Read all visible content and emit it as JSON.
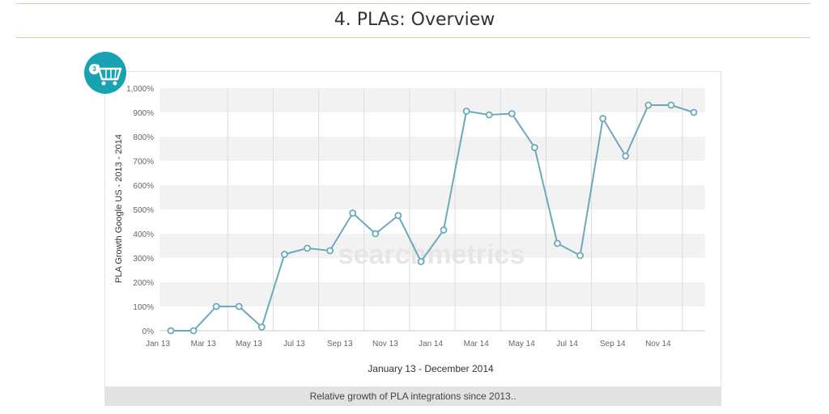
{
  "page": {
    "title": "4. PLAs: Overview"
  },
  "caption": "Relative growth of PLA integrations since 2013..",
  "icon": {
    "name": "shopping-cart-icon",
    "badge": "3",
    "color": "#19a3b2"
  },
  "watermark": "searchmetrics",
  "chart_data": {
    "type": "line",
    "xlabel": "January 13 - December 2014",
    "ylabel": "PLA Growth Google US - 2013 - 2014",
    "ylim": [
      0,
      1000
    ],
    "y_ticks": [
      "0%",
      "100%",
      "200%",
      "300%",
      "400%",
      "500%",
      "600%",
      "700%",
      "800%",
      "900%",
      "1,000%"
    ],
    "x_ticks": [
      "Jan 13",
      "Mar 13",
      "May 13",
      "Jul 13",
      "Sep 13",
      "Nov 13",
      "Jan 14",
      "Mar 14",
      "May 14",
      "Jul 14",
      "Sep 14",
      "Nov 14"
    ],
    "grid": true,
    "line_color": "#6aaabb",
    "series": [
      {
        "values": [
          0,
          0,
          100,
          100,
          15,
          315,
          340,
          330,
          485,
          400,
          475,
          285,
          415,
          905,
          890,
          895,
          755,
          360,
          310,
          875,
          720,
          930,
          930,
          900
        ]
      }
    ]
  }
}
